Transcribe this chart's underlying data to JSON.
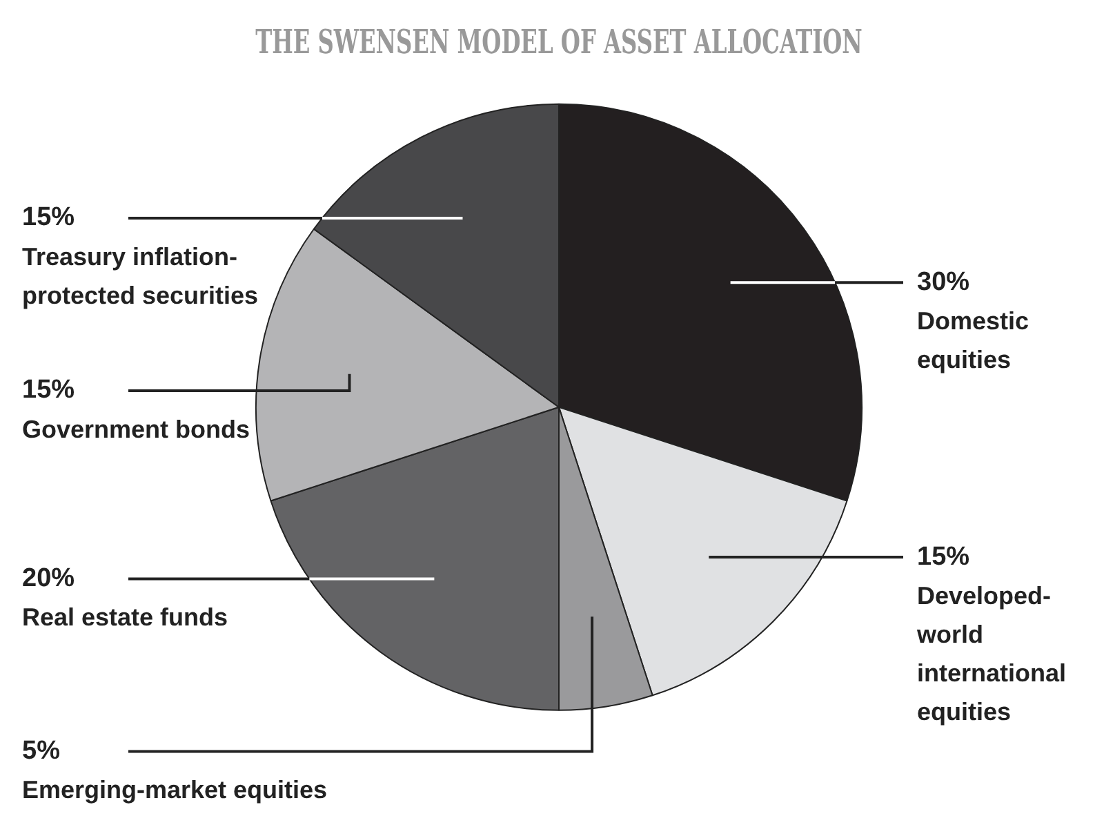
{
  "chart_data": {
    "type": "pie",
    "title": "THE SWENSEN MODEL OF ASSET ALLOCATION",
    "categories": [
      "Domestic equities",
      "Developed-world international equities",
      "Emerging-market equities",
      "Real estate funds",
      "Government bonds",
      "Treasury inflation-protected securities"
    ],
    "values": [
      30,
      15,
      5,
      20,
      15,
      15
    ],
    "value_labels": [
      "30%",
      "15%",
      "5%",
      "20%",
      "15%",
      "15%"
    ],
    "colors": [
      "#231f20",
      "#e0e1e3",
      "#9a9a9c",
      "#636365",
      "#b4b4b6",
      "#48484a"
    ],
    "legend": false
  }
}
